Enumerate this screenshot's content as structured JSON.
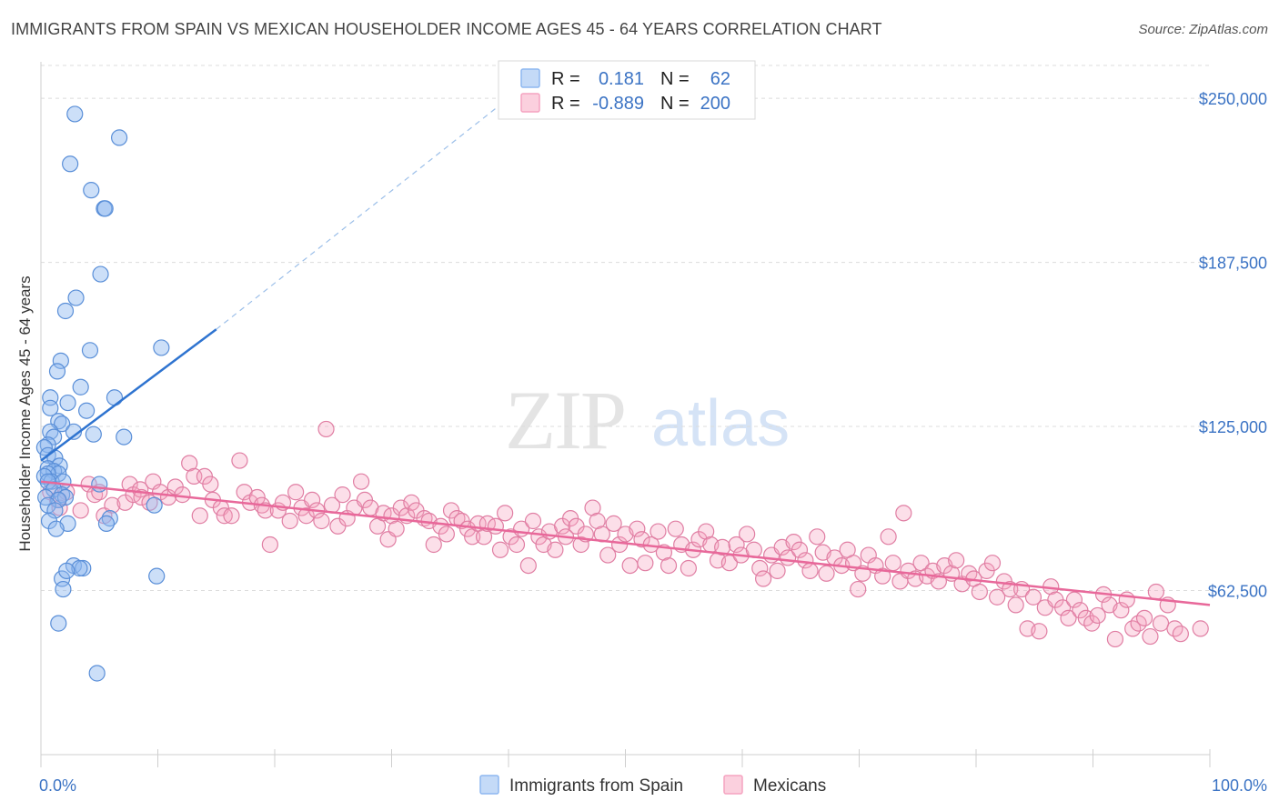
{
  "title": "IMMIGRANTS FROM SPAIN VS MEXICAN HOUSEHOLDER INCOME AGES 45 - 64 YEARS CORRELATION CHART",
  "source": "Source: ZipAtlas.com",
  "watermark": {
    "zip": "ZIP",
    "atlas": "atlas"
  },
  "legend": {
    "rows": [
      {
        "r_label": "R =",
        "r_value": "0.181",
        "n_label": "N =",
        "n_value": "62",
        "color": "#8db7f0"
      },
      {
        "r_label": "R =",
        "r_value": "-0.889",
        "n_label": "N =",
        "n_value": "200",
        "color": "#f5a3c0"
      }
    ]
  },
  "chart_data": {
    "type": "scatter",
    "ylabel": "Householder Income Ages 45 - 64 years",
    "x_tick_labels": {
      "min": "0.0%",
      "max": "100.0%"
    },
    "y_tick_labels": [
      "$62,500",
      "$125,000",
      "$187,500",
      "$250,000"
    ],
    "y_ticks": [
      62500,
      125000,
      187500,
      250000
    ],
    "xlim": [
      0,
      100
    ],
    "ylim": [
      0,
      262500
    ],
    "grid": true,
    "legend_placement": "bottom",
    "series": [
      {
        "name": "Immigrants from Spain",
        "color": "#8db7f0",
        "stroke": "#5a8fd8",
        "trend_color": "#2f74d0",
        "trend": {
          "x": [
            0,
            15
          ],
          "y": [
            112000,
            162000
          ],
          "dash_to": [
            40,
            250000
          ]
        },
        "points": [
          [
            2.9,
            244000
          ],
          [
            6.7,
            235000
          ],
          [
            2.5,
            225000
          ],
          [
            4.3,
            215000
          ],
          [
            5.4,
            208000
          ],
          [
            5.5,
            208000
          ],
          [
            5.1,
            183000
          ],
          [
            3.0,
            174000
          ],
          [
            2.1,
            169000
          ],
          [
            10.3,
            155000
          ],
          [
            4.2,
            154000
          ],
          [
            1.7,
            150000
          ],
          [
            1.4,
            146000
          ],
          [
            3.4,
            140000
          ],
          [
            6.3,
            136000
          ],
          [
            0.8,
            136000
          ],
          [
            2.3,
            134000
          ],
          [
            0.8,
            132000
          ],
          [
            3.9,
            131000
          ],
          [
            1.5,
            127000
          ],
          [
            1.8,
            126000
          ],
          [
            0.8,
            123000
          ],
          [
            2.8,
            123000
          ],
          [
            4.5,
            122000
          ],
          [
            7.1,
            121000
          ],
          [
            1.1,
            121000
          ],
          [
            0.6,
            118000
          ],
          [
            0.3,
            117000
          ],
          [
            0.6,
            114000
          ],
          [
            1.2,
            113000
          ],
          [
            1.6,
            110000
          ],
          [
            0.6,
            109000
          ],
          [
            1.1,
            108000
          ],
          [
            1.5,
            107000
          ],
          [
            0.6,
            107000
          ],
          [
            0.3,
            106000
          ],
          [
            0.9,
            104000
          ],
          [
            1.9,
            104000
          ],
          [
            0.6,
            104000
          ],
          [
            5.0,
            103000
          ],
          [
            1.1,
            101000
          ],
          [
            1.8,
            99000
          ],
          [
            2.1,
            98000
          ],
          [
            0.4,
            98000
          ],
          [
            1.5,
            97000
          ],
          [
            9.7,
            95000
          ],
          [
            0.6,
            95000
          ],
          [
            1.2,
            93000
          ],
          [
            5.9,
            90000
          ],
          [
            0.7,
            89000
          ],
          [
            5.6,
            88000
          ],
          [
            2.3,
            88000
          ],
          [
            1.3,
            86000
          ],
          [
            2.8,
            72000
          ],
          [
            3.6,
            71000
          ],
          [
            3.3,
            71000
          ],
          [
            9.9,
            68000
          ],
          [
            1.8,
            67000
          ],
          [
            1.9,
            63000
          ],
          [
            1.5,
            50000
          ],
          [
            4.8,
            31000
          ],
          [
            2.2,
            70000
          ]
        ]
      },
      {
        "name": "Mexicans",
        "color": "#f5a3c0",
        "stroke": "#e07ea3",
        "trend_color": "#e8689a",
        "trend": {
          "x": [
            0,
            100
          ],
          "y": [
            104000,
            57000
          ]
        },
        "points": [
          [
            0.8,
            100000
          ],
          [
            1.4,
            97000
          ],
          [
            2.2,
            100000
          ],
          [
            3.4,
            93000
          ],
          [
            1.6,
            94000
          ],
          [
            4.1,
            103000
          ],
          [
            4.6,
            99000
          ],
          [
            5.0,
            100000
          ],
          [
            5.4,
            91000
          ],
          [
            6.1,
            95000
          ],
          [
            7.2,
            96000
          ],
          [
            7.6,
            103000
          ],
          [
            7.9,
            99000
          ],
          [
            8.5,
            101000
          ],
          [
            8.6,
            98000
          ],
          [
            9.3,
            96000
          ],
          [
            9.6,
            104000
          ],
          [
            10.2,
            100000
          ],
          [
            10.9,
            98000
          ],
          [
            11.5,
            102000
          ],
          [
            12.1,
            99000
          ],
          [
            12.7,
            111000
          ],
          [
            13.1,
            106000
          ],
          [
            13.6,
            91000
          ],
          [
            14.0,
            106000
          ],
          [
            14.5,
            103000
          ],
          [
            14.7,
            97000
          ],
          [
            15.4,
            94000
          ],
          [
            15.7,
            91000
          ],
          [
            16.3,
            91000
          ],
          [
            17.0,
            112000
          ],
          [
            17.4,
            100000
          ],
          [
            17.9,
            96000
          ],
          [
            18.5,
            98000
          ],
          [
            18.9,
            95000
          ],
          [
            19.2,
            93000
          ],
          [
            19.6,
            80000
          ],
          [
            20.3,
            93000
          ],
          [
            20.7,
            96000
          ],
          [
            21.3,
            89000
          ],
          [
            21.8,
            100000
          ],
          [
            22.3,
            94000
          ],
          [
            22.7,
            91000
          ],
          [
            23.2,
            97000
          ],
          [
            23.6,
            93000
          ],
          [
            24.0,
            89000
          ],
          [
            24.4,
            124000
          ],
          [
            24.9,
            95000
          ],
          [
            25.4,
            87000
          ],
          [
            25.8,
            99000
          ],
          [
            26.2,
            90000
          ],
          [
            26.8,
            94000
          ],
          [
            27.4,
            104000
          ],
          [
            27.7,
            97000
          ],
          [
            28.2,
            94000
          ],
          [
            28.8,
            87000
          ],
          [
            29.3,
            92000
          ],
          [
            29.7,
            82000
          ],
          [
            30.0,
            91000
          ],
          [
            30.4,
            86000
          ],
          [
            30.8,
            94000
          ],
          [
            31.3,
            91000
          ],
          [
            31.7,
            96000
          ],
          [
            32.1,
            93000
          ],
          [
            32.8,
            90000
          ],
          [
            33.2,
            89000
          ],
          [
            33.6,
            80000
          ],
          [
            34.2,
            87000
          ],
          [
            34.7,
            84000
          ],
          [
            35.1,
            93000
          ],
          [
            35.6,
            90000
          ],
          [
            36.0,
            89000
          ],
          [
            36.5,
            86000
          ],
          [
            36.9,
            83000
          ],
          [
            37.4,
            88000
          ],
          [
            37.9,
            83000
          ],
          [
            38.2,
            88000
          ],
          [
            38.9,
            87000
          ],
          [
            39.3,
            78000
          ],
          [
            39.7,
            92000
          ],
          [
            40.2,
            83000
          ],
          [
            40.7,
            80000
          ],
          [
            41.1,
            86000
          ],
          [
            41.7,
            72000
          ],
          [
            42.1,
            89000
          ],
          [
            42.6,
            83000
          ],
          [
            43.0,
            80000
          ],
          [
            43.5,
            85000
          ],
          [
            44.0,
            78000
          ],
          [
            44.6,
            87000
          ],
          [
            44.9,
            83000
          ],
          [
            45.3,
            90000
          ],
          [
            45.8,
            87000
          ],
          [
            46.2,
            80000
          ],
          [
            46.6,
            84000
          ],
          [
            47.2,
            94000
          ],
          [
            47.6,
            89000
          ],
          [
            48.0,
            84000
          ],
          [
            48.5,
            76000
          ],
          [
            49.0,
            88000
          ],
          [
            49.5,
            80000
          ],
          [
            50.0,
            84000
          ],
          [
            50.4,
            72000
          ],
          [
            51.0,
            86000
          ],
          [
            51.4,
            82000
          ],
          [
            51.7,
            73000
          ],
          [
            52.2,
            80000
          ],
          [
            52.8,
            85000
          ],
          [
            53.3,
            77000
          ],
          [
            53.7,
            72000
          ],
          [
            54.3,
            86000
          ],
          [
            54.8,
            80000
          ],
          [
            55.4,
            71000
          ],
          [
            55.8,
            78000
          ],
          [
            56.3,
            82000
          ],
          [
            56.9,
            85000
          ],
          [
            57.3,
            80000
          ],
          [
            57.9,
            74000
          ],
          [
            58.3,
            79000
          ],
          [
            58.9,
            73000
          ],
          [
            59.5,
            80000
          ],
          [
            59.9,
            76000
          ],
          [
            60.4,
            84000
          ],
          [
            61.0,
            78000
          ],
          [
            61.5,
            71000
          ],
          [
            61.8,
            67000
          ],
          [
            62.5,
            76000
          ],
          [
            63.0,
            70000
          ],
          [
            63.4,
            79000
          ],
          [
            63.9,
            75000
          ],
          [
            64.4,
            81000
          ],
          [
            64.9,
            78000
          ],
          [
            65.4,
            74000
          ],
          [
            65.8,
            70000
          ],
          [
            66.4,
            83000
          ],
          [
            66.9,
            77000
          ],
          [
            67.2,
            69000
          ],
          [
            67.9,
            75000
          ],
          [
            68.5,
            72000
          ],
          [
            69.0,
            78000
          ],
          [
            69.5,
            73000
          ],
          [
            69.9,
            63000
          ],
          [
            70.3,
            69000
          ],
          [
            70.8,
            76000
          ],
          [
            71.4,
            72000
          ],
          [
            72.0,
            68000
          ],
          [
            72.5,
            83000
          ],
          [
            72.9,
            73000
          ],
          [
            73.5,
            66000
          ],
          [
            73.8,
            92000
          ],
          [
            74.2,
            70000
          ],
          [
            74.8,
            67000
          ],
          [
            75.3,
            73000
          ],
          [
            75.8,
            68000
          ],
          [
            76.3,
            70000
          ],
          [
            76.8,
            66000
          ],
          [
            77.3,
            72000
          ],
          [
            77.9,
            69000
          ],
          [
            78.3,
            74000
          ],
          [
            78.8,
            65000
          ],
          [
            79.4,
            69000
          ],
          [
            79.8,
            67000
          ],
          [
            80.3,
            62000
          ],
          [
            80.9,
            70000
          ],
          [
            81.4,
            73000
          ],
          [
            81.8,
            60000
          ],
          [
            82.4,
            66000
          ],
          [
            82.9,
            63000
          ],
          [
            83.4,
            57000
          ],
          [
            83.9,
            63000
          ],
          [
            84.4,
            48000
          ],
          [
            84.9,
            60000
          ],
          [
            85.4,
            47000
          ],
          [
            85.9,
            56000
          ],
          [
            86.4,
            64000
          ],
          [
            86.8,
            59000
          ],
          [
            87.4,
            56000
          ],
          [
            87.9,
            52000
          ],
          [
            88.4,
            59000
          ],
          [
            88.9,
            55000
          ],
          [
            89.4,
            52000
          ],
          [
            89.9,
            50000
          ],
          [
            90.4,
            53000
          ],
          [
            90.9,
            61000
          ],
          [
            91.4,
            57000
          ],
          [
            91.9,
            44000
          ],
          [
            92.4,
            55000
          ],
          [
            92.9,
            59000
          ],
          [
            93.4,
            48000
          ],
          [
            93.9,
            50000
          ],
          [
            94.4,
            52000
          ],
          [
            94.9,
            45000
          ],
          [
            95.4,
            62000
          ],
          [
            95.8,
            50000
          ],
          [
            96.4,
            57000
          ],
          [
            97.0,
            48000
          ],
          [
            97.5,
            46000
          ],
          [
            99.2,
            48000
          ]
        ]
      }
    ]
  }
}
